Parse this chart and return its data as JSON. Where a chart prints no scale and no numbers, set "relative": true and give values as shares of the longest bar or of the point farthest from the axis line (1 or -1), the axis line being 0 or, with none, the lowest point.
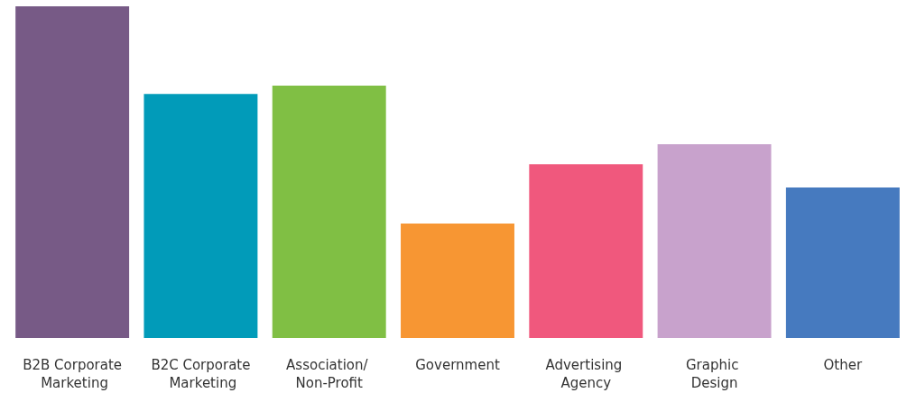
{
  "chart_data": {
    "type": "bar",
    "relative": true,
    "categories": [
      "B2B Corporate Marketing",
      "B2C Corporate Marketing",
      "Association/ Non-Profit",
      "Government",
      "Advertising Agency",
      "Graphic Design",
      "Other"
    ],
    "values": [
      1,
      0.736,
      0.761,
      0.345,
      0.524,
      0.584,
      0.454
    ],
    "colors": [
      "#775a86",
      "#019bb9",
      "#80bf44",
      "#f79633",
      "#f0587d",
      "#c8a2cc",
      "#467abf"
    ],
    "data_labels": false
  }
}
